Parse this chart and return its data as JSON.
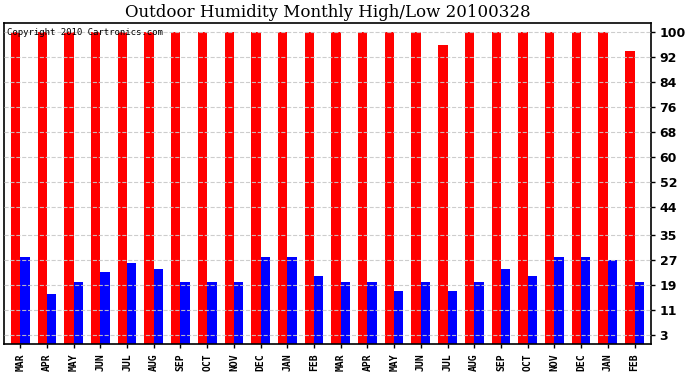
{
  "title": "Outdoor Humidity Monthly High/Low 20100328",
  "copyright": "Copyright 2010 Cartronics.com",
  "categories": [
    "MAR",
    "APR",
    "MAY",
    "JUN",
    "JUL",
    "AUG",
    "SEP",
    "OCT",
    "NOV",
    "DEC",
    "JAN",
    "FEB",
    "MAR",
    "APR",
    "MAY",
    "JUN",
    "JUL",
    "AUG",
    "SEP",
    "OCT",
    "NOV",
    "DEC",
    "JAN",
    "FEB"
  ],
  "highs": [
    100,
    100,
    100,
    100,
    100,
    100,
    100,
    100,
    100,
    100,
    100,
    100,
    100,
    100,
    100,
    100,
    96,
    100,
    100,
    100,
    100,
    100,
    100,
    94
  ],
  "lows": [
    28,
    16,
    20,
    23,
    26,
    24,
    20,
    20,
    20,
    28,
    28,
    22,
    20,
    20,
    17,
    20,
    17,
    20,
    24,
    22,
    28,
    28,
    27,
    20
  ],
  "high_color": "#ff0000",
  "low_color": "#0000ff",
  "bg_color": "#ffffff",
  "grid_color": "#c8c8c8",
  "title_fontsize": 12,
  "yticks": [
    3,
    11,
    19,
    27,
    35,
    44,
    52,
    60,
    68,
    76,
    84,
    92,
    100
  ],
  "ylim": [
    0,
    103
  ],
  "bar_width": 0.35,
  "fig_width": 6.9,
  "fig_height": 3.75,
  "dpi": 100
}
